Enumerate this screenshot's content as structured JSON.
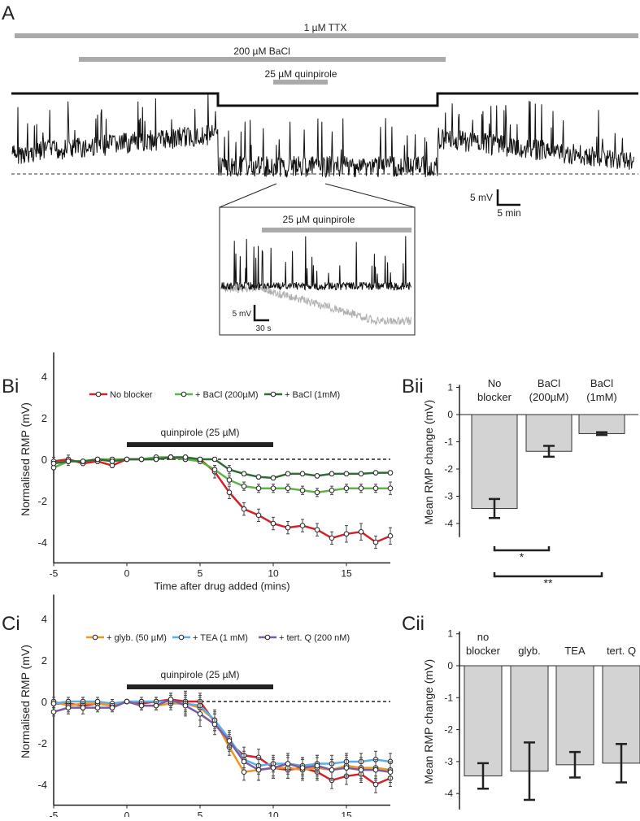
{
  "panel_labels": {
    "A": "A",
    "Bi": "Bi",
    "Bii": "Bii",
    "Ci": "Ci",
    "Cii": "Cii"
  },
  "panelA": {
    "ttx": "1 µM TTX",
    "bacl": "200 µM BaCl",
    "quin": "25 µM quinpirole",
    "scale_mv": "5 mV",
    "scale_min": "5 min",
    "inset_quin": "25 µM quinpirole",
    "inset_mv": "5 mV",
    "inset_s": "30 s",
    "colors": {
      "trace": "#111111",
      "drug_bar": "#aaaaaa",
      "inset_gray": "#b0b0b0"
    }
  },
  "chart_data": [
    {
      "type": "line",
      "panel": "Bi",
      "ylabel": "Normalised RMP (mV)",
      "xlabel": "Time after drug added (mins)",
      "xlim": [
        -5,
        18
      ],
      "ylim": [
        -5,
        5
      ],
      "xticks": [
        "-5",
        "0",
        "5",
        "10",
        "15"
      ],
      "yticks": [
        "4",
        "2",
        "0",
        "-2",
        "-4"
      ],
      "drug_label": "quinpirole (25 µM)",
      "drug_range": [
        0,
        10
      ],
      "x": [
        -5,
        -4,
        -3,
        -2,
        -1,
        0,
        1,
        2,
        3,
        4,
        5,
        6,
        7,
        8,
        9,
        10,
        11,
        12,
        13,
        14,
        15,
        16,
        17,
        18
      ],
      "series": [
        {
          "name": "No blocker",
          "color": "#d62027",
          "values": [
            -0.1,
            0,
            -0.2,
            -0.1,
            -0.3,
            0,
            0,
            0,
            0.1,
            0,
            0,
            -0.6,
            -1.6,
            -2.4,
            -2.7,
            -3.1,
            -3.3,
            -3.2,
            -3.4,
            -3.8,
            -3.6,
            -3.5,
            -4.0,
            -3.7
          ],
          "err": [
            0.2,
            0.2,
            0.1,
            0.1,
            0.1,
            0,
            0.1,
            0.1,
            0.1,
            0.1,
            0.1,
            0.3,
            0.3,
            0.3,
            0.3,
            0.3,
            0.3,
            0.3,
            0.3,
            0.3,
            0.4,
            0.4,
            0.3,
            0.4
          ]
        },
        {
          "name": "+ BaCl (200µM)",
          "color": "#5cb547",
          "values": [
            -0.4,
            -0.1,
            -0.1,
            0,
            0,
            0,
            0,
            0.1,
            0.1,
            0,
            -0.1,
            -0.5,
            -1.0,
            -1.3,
            -1.4,
            -1.4,
            -1.4,
            -1.5,
            -1.6,
            -1.5,
            -1.4,
            -1.4,
            -1.4,
            -1.4
          ],
          "err": [
            0.1,
            0.2,
            0.1,
            0.1,
            0.1,
            0,
            0.1,
            0.1,
            0.1,
            0.1,
            0.1,
            0.2,
            0.2,
            0.2,
            0.2,
            0.2,
            0.2,
            0.2,
            0.2,
            0.2,
            0.2,
            0.2,
            0.2,
            0.3
          ]
        },
        {
          "name": "+ BaCl (1mM)",
          "color": "#2e6b35",
          "values": [
            -0.2,
            -0.1,
            -0.1,
            0,
            -0.1,
            0,
            0,
            0,
            0.1,
            0.1,
            0,
            0,
            -0.5,
            -0.7,
            -0.85,
            -0.9,
            -0.7,
            -0.7,
            -0.8,
            -0.7,
            -0.7,
            -0.7,
            -0.65,
            -0.65
          ],
          "err": [
            0.1,
            0.1,
            0.1,
            0.1,
            0.1,
            0,
            0.1,
            0.1,
            0.1,
            0.1,
            0.1,
            0.1,
            0.2,
            0.1,
            0.1,
            0.1,
            0.1,
            0.1,
            0.1,
            0.1,
            0.1,
            0.1,
            0.1,
            0.1
          ]
        }
      ]
    },
    {
      "type": "bar",
      "panel": "Bii",
      "ylabel": "Mean RMP change (mV)",
      "ylim": [
        -4.5,
        1
      ],
      "yticks": [
        "1",
        "0",
        "-1",
        "-2",
        "-3",
        "-4"
      ],
      "categories": [
        [
          "No",
          "blocker"
        ],
        [
          "BaCl",
          "(200µM)"
        ],
        [
          "BaCl",
          "(1mM)"
        ]
      ],
      "values": [
        -3.45,
        -1.35,
        -0.7
      ],
      "err": [
        0.35,
        0.2,
        0.05
      ],
      "color": "#d3d3d3",
      "significance": [
        {
          "pair": [
            0,
            1
          ],
          "label": "*"
        },
        {
          "pair": [
            0,
            2
          ],
          "label": "**"
        }
      ]
    },
    {
      "type": "line",
      "panel": "Ci",
      "ylabel": "Normalised RMP (mV)",
      "xlabel": "Time after drug added (mins)",
      "xlim": [
        -5,
        18
      ],
      "ylim": [
        -5,
        5
      ],
      "xticks": [
        "-5",
        "0",
        "5",
        "10",
        "15"
      ],
      "yticks": [
        "4",
        "2",
        "0",
        "-2",
        "-4"
      ],
      "drug_label": "quinpirole (25 µM)",
      "drug_range": [
        0,
        10
      ],
      "x": [
        -5,
        -4,
        -3,
        -2,
        -1,
        0,
        1,
        2,
        3,
        4,
        5,
        6,
        7,
        8,
        9,
        10,
        11,
        12,
        13,
        14,
        15,
        16,
        17,
        18
      ],
      "series": [
        {
          "name": "",
          "color": "#d62027",
          "values": [
            -0.1,
            -0.1,
            -0.2,
            -0.1,
            -0.2,
            0,
            -0.1,
            0,
            0.1,
            0,
            0,
            -1.0,
            -2.0,
            -2.6,
            -2.7,
            -3.2,
            -3.3,
            -3.2,
            -3.4,
            -3.8,
            -3.6,
            -3.5,
            -4.0,
            -3.7
          ],
          "err": [
            0.2,
            0.2,
            0.2,
            0.2,
            0.2,
            0,
            0.2,
            0.2,
            0.3,
            0.4,
            0.4,
            0.4,
            0.4,
            0.4,
            0.4,
            0.4,
            0.4,
            0.4,
            0.4,
            0.4,
            0.4,
            0.4,
            0.4,
            0.4
          ]
        },
        {
          "name": "+ glyb. (50 µM)",
          "color": "#f0951e",
          "values": [
            0,
            -0.2,
            -0.1,
            -0.1,
            -0.2,
            0,
            -0.2,
            -0.2,
            -0.1,
            -0.1,
            -0.3,
            -0.9,
            -2.2,
            -3.4,
            -3.3,
            -3.2,
            -3.2,
            -3.3,
            -3.2,
            -3.3,
            -3.1,
            -3.2,
            -3.2,
            -3.3
          ],
          "err": [
            0.2,
            0.3,
            0.3,
            0.2,
            0.2,
            0,
            0.2,
            0.2,
            0.3,
            0.6,
            0.6,
            0.5,
            0.4,
            0.4,
            0.5,
            0.5,
            0.5,
            0.5,
            0.5,
            0.5,
            0.5,
            0.5,
            0.5,
            0.5
          ]
        },
        {
          "name": "+ TEA (1 mM)",
          "color": "#5ab0e6",
          "values": [
            -0.1,
            0,
            0,
            0,
            -0.1,
            0,
            0,
            0,
            0,
            -0.1,
            -0.2,
            -0.9,
            -1.8,
            -2.8,
            -3.1,
            -3.0,
            -3.0,
            -3.1,
            -3.0,
            -3.0,
            -2.9,
            -2.9,
            -2.8,
            -2.9
          ],
          "err": [
            0.2,
            0.2,
            0.2,
            0.2,
            0.2,
            0,
            0.2,
            0.2,
            0.3,
            0.4,
            0.4,
            0.4,
            0.4,
            0.4,
            0.4,
            0.4,
            0.4,
            0.4,
            0.4,
            0.4,
            0.4,
            0.4,
            0.4,
            0.4
          ]
        },
        {
          "name": "+ tert. Q (200 nM)",
          "color": "#7b5aa6",
          "values": [
            -0.5,
            -0.3,
            -0.3,
            -0.3,
            -0.3,
            0,
            -0.2,
            -0.2,
            0.1,
            -0.2,
            -0.6,
            -1.1,
            -1.9,
            -2.9,
            -3.3,
            -3.2,
            -3.0,
            -3.2,
            -3.1,
            -3.3,
            -3.2,
            -3.3,
            -3.3,
            -3.4
          ],
          "err": [
            0.2,
            0.3,
            0.3,
            0.2,
            0.2,
            0,
            0.2,
            0.2,
            0.3,
            0.4,
            0.6,
            0.5,
            0.4,
            0.4,
            0.5,
            0.5,
            0.5,
            0.5,
            0.5,
            0.5,
            0.5,
            0.5,
            0.5,
            0.5
          ]
        }
      ]
    },
    {
      "type": "bar",
      "panel": "Cii",
      "ylabel": "Mean RMP change (mV)",
      "ylim": [
        -4.5,
        1
      ],
      "yticks": [
        "1",
        "0",
        "-1",
        "-2",
        "-3",
        "-4"
      ],
      "categories": [
        [
          "no",
          "blocker"
        ],
        [
          "glyb."
        ],
        [
          "TEA"
        ],
        [
          "tert. Q"
        ]
      ],
      "values": [
        -3.45,
        -3.3,
        -3.1,
        -3.05
      ],
      "err": [
        0.4,
        0.9,
        0.4,
        0.6
      ],
      "color": "#d3d3d3"
    }
  ]
}
